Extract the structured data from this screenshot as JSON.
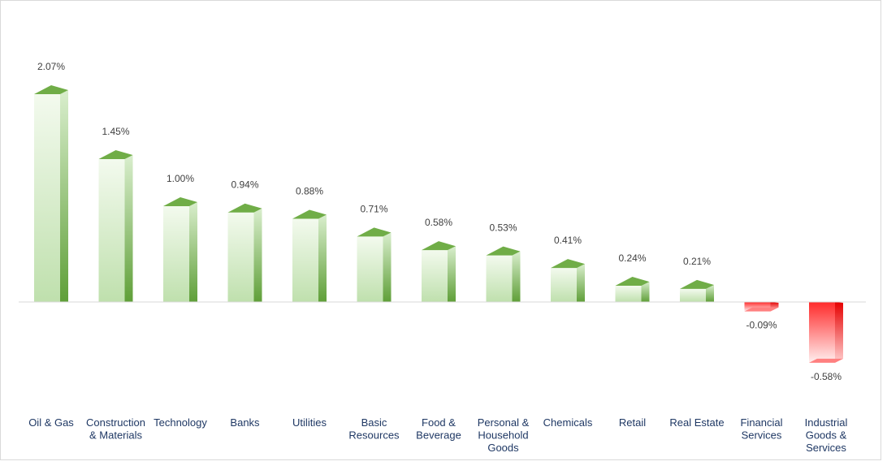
{
  "chart_data": {
    "type": "bar",
    "title": "",
    "xlabel": "",
    "ylabel": "",
    "categories": [
      "Oil & Gas",
      "Construction & Materials",
      "Technology",
      "Banks",
      "Utilities",
      "Basic Resources",
      "Food & Beverage",
      "Personal & Household Goods",
      "Chemicals",
      "Retail",
      "Real Estate",
      "Financial Services",
      "Industrial Goods & Services"
    ],
    "category_lines": [
      [
        "Oil & Gas"
      ],
      [
        "Construction",
        "& Materials"
      ],
      [
        "Technology"
      ],
      [
        "Banks"
      ],
      [
        "Utilities"
      ],
      [
        "Basic",
        "Resources"
      ],
      [
        "Food &",
        "Beverage"
      ],
      [
        "Personal &",
        "Household",
        "Goods"
      ],
      [
        "Chemicals"
      ],
      [
        "Retail"
      ],
      [
        "Real Estate"
      ],
      [
        "Financial",
        "Services"
      ],
      [
        "Industrial",
        "Goods &",
        "Services"
      ]
    ],
    "values": [
      2.07,
      1.45,
      1.0,
      0.94,
      0.88,
      0.71,
      0.58,
      0.53,
      0.41,
      0.24,
      0.21,
      -0.09,
      -0.58
    ],
    "value_labels": [
      "2.07%",
      "1.45%",
      "1.00%",
      "0.94%",
      "0.88%",
      "0.71%",
      "0.58%",
      "0.53%",
      "0.41%",
      "0.24%",
      "0.21%",
      "-0.09%",
      "-0.58%"
    ],
    "ylim": [
      -0.6,
      2.1
    ],
    "grid": false,
    "legend": "none",
    "colors": {
      "positive": "#70ad47",
      "positive_dark": "#4f8a2f",
      "positive_light": "#eef7e9",
      "negative": "#ff0000",
      "negative_dark": "#d40000",
      "negative_light": "#ffeaea",
      "baseline": "#d9d9d9"
    }
  }
}
